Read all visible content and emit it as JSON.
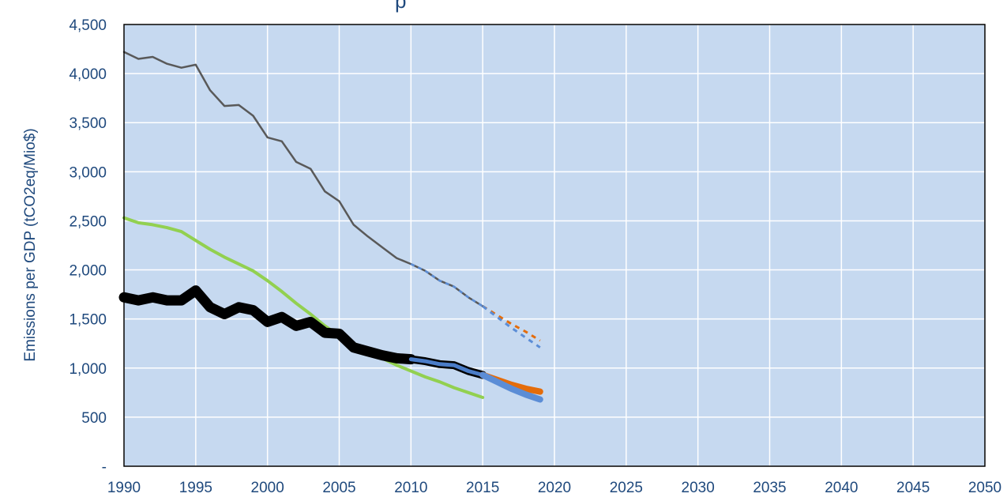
{
  "chart_data": {
    "type": "line",
    "title": "p",
    "xlabel": "",
    "ylabel": "Emissions per GDP (tCO2eq/Mio$)",
    "xlim": [
      1990,
      2050
    ],
    "ylim": [
      0,
      4500
    ],
    "x_ticks": [
      1990,
      1995,
      2000,
      2005,
      2010,
      2015,
      2020,
      2025,
      2030,
      2035,
      2040,
      2045,
      2050
    ],
    "y_ticks": [
      {
        "value": 0,
        "label": "-"
      },
      {
        "value": 500,
        "label": "500"
      },
      {
        "value": 1000,
        "label": "1,000"
      },
      {
        "value": 1500,
        "label": "1,500"
      },
      {
        "value": 2000,
        "label": "2,000"
      },
      {
        "value": 2500,
        "label": "2,500"
      },
      {
        "value": 3000,
        "label": "3,000"
      },
      {
        "value": 3500,
        "label": "3,500"
      },
      {
        "value": 4000,
        "label": "4,000"
      },
      {
        "value": 4500,
        "label": "4,500"
      }
    ],
    "grid": true,
    "plot_background": "#c6d9f0",
    "series": [
      {
        "color": "#595959",
        "width": 2.5,
        "dash": "",
        "points": [
          [
            1990,
            4220
          ],
          [
            1991,
            4150
          ],
          [
            1992,
            4170
          ],
          [
            1993,
            4100
          ],
          [
            1994,
            4060
          ],
          [
            1995,
            4090
          ],
          [
            1996,
            3830
          ],
          [
            1997,
            3670
          ],
          [
            1998,
            3680
          ],
          [
            1999,
            3570
          ],
          [
            2000,
            3350
          ],
          [
            2001,
            3310
          ],
          [
            2002,
            3100
          ],
          [
            2003,
            3030
          ],
          [
            2004,
            2800
          ],
          [
            2005,
            2700
          ],
          [
            2006,
            2460
          ],
          [
            2007,
            2340
          ],
          [
            2008,
            2230
          ],
          [
            2009,
            2120
          ],
          [
            2010,
            2060
          ],
          [
            2011,
            1990
          ],
          [
            2012,
            1890
          ],
          [
            2013,
            1830
          ],
          [
            2014,
            1720
          ],
          [
            2015,
            1630
          ]
        ]
      },
      {
        "color": "#5b8dd6",
        "width": 2.5,
        "dash": "5,5",
        "points": [
          [
            2010,
            2060
          ],
          [
            2011,
            1990
          ],
          [
            2012,
            1890
          ],
          [
            2013,
            1830
          ],
          [
            2014,
            1720
          ],
          [
            2015,
            1630
          ]
        ]
      },
      {
        "color": "#e46c0a",
        "width": 3,
        "dash": "6,6",
        "points": [
          [
            2015,
            1630
          ],
          [
            2016,
            1540
          ],
          [
            2017,
            1450
          ],
          [
            2018,
            1370
          ],
          [
            2019,
            1280
          ]
        ]
      },
      {
        "color": "#5b8dd6",
        "width": 3,
        "dash": "6,6",
        "points": [
          [
            2015,
            1630
          ],
          [
            2016,
            1520
          ],
          [
            2017,
            1410
          ],
          [
            2018,
            1310
          ],
          [
            2019,
            1210
          ]
        ]
      },
      {
        "color": "#92d050",
        "width": 4,
        "dash": "",
        "points": [
          [
            1990,
            2530
          ],
          [
            1991,
            2480
          ],
          [
            1992,
            2460
          ],
          [
            1993,
            2430
          ],
          [
            1994,
            2390
          ],
          [
            1995,
            2300
          ],
          [
            1996,
            2210
          ],
          [
            1997,
            2130
          ],
          [
            1998,
            2060
          ],
          [
            1999,
            1990
          ],
          [
            2000,
            1890
          ],
          [
            2001,
            1780
          ],
          [
            2002,
            1660
          ],
          [
            2003,
            1550
          ],
          [
            2004,
            1430
          ],
          [
            2005,
            1330
          ],
          [
            2006,
            1240
          ],
          [
            2007,
            1170
          ],
          [
            2008,
            1100
          ],
          [
            2009,
            1030
          ],
          [
            2010,
            970
          ],
          [
            2011,
            910
          ],
          [
            2012,
            860
          ],
          [
            2013,
            800
          ],
          [
            2014,
            750
          ],
          [
            2015,
            700
          ]
        ]
      },
      {
        "color": "#000000",
        "width": 13,
        "dash": "",
        "points": [
          [
            1990,
            1720
          ],
          [
            1991,
            1690
          ],
          [
            1992,
            1720
          ],
          [
            1993,
            1690
          ],
          [
            1994,
            1690
          ],
          [
            1995,
            1790
          ],
          [
            1996,
            1620
          ],
          [
            1997,
            1550
          ],
          [
            1998,
            1620
          ],
          [
            1999,
            1590
          ],
          [
            2000,
            1470
          ],
          [
            2001,
            1520
          ],
          [
            2002,
            1430
          ],
          [
            2003,
            1470
          ],
          [
            2004,
            1360
          ],
          [
            2005,
            1350
          ],
          [
            2006,
            1210
          ],
          [
            2007,
            1170
          ],
          [
            2008,
            1130
          ],
          [
            2009,
            1100
          ],
          [
            2010,
            1090
          ]
        ]
      },
      {
        "color": "#000000",
        "width": 10,
        "dash": "",
        "points": [
          [
            2010,
            1090
          ],
          [
            2011,
            1070
          ],
          [
            2012,
            1040
          ],
          [
            2013,
            1030
          ],
          [
            2014,
            970
          ],
          [
            2015,
            930
          ]
        ]
      },
      {
        "color": "#4a7cc7",
        "width": 5,
        "dash": "",
        "points": [
          [
            2010,
            1090
          ],
          [
            2011,
            1070
          ],
          [
            2012,
            1040
          ],
          [
            2013,
            1030
          ],
          [
            2014,
            970
          ],
          [
            2015,
            930
          ]
        ]
      },
      {
        "color": "#e46c0a",
        "width": 8,
        "dash": "",
        "points": [
          [
            2015,
            930
          ],
          [
            2016,
            880
          ],
          [
            2017,
            830
          ],
          [
            2018,
            790
          ],
          [
            2019,
            760
          ]
        ]
      },
      {
        "color": "#5b8dd6",
        "width": 8,
        "dash": "",
        "points": [
          [
            2015,
            930
          ],
          [
            2016,
            860
          ],
          [
            2017,
            790
          ],
          [
            2018,
            730
          ],
          [
            2019,
            680
          ]
        ]
      }
    ]
  }
}
